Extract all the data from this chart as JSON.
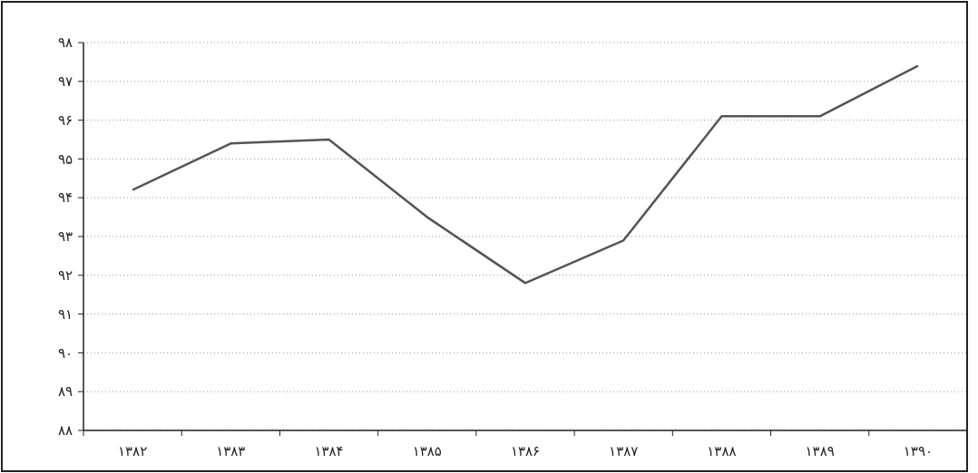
{
  "chart_data": {
    "type": "line",
    "categories": [
      "۱۳۸۲",
      "۱۳۸۳",
      "۱۳۸۴",
      "۱۳۸۵",
      "۱۳۸۶",
      "۱۳۸۷",
      "۱۳۸۸",
      "۱۳۸۹",
      "۱۳۹۰"
    ],
    "series": [
      {
        "color": "#555555",
        "values": [
          94.2,
          95.4,
          95.5,
          93.5,
          91.8,
          92.9,
          96.1,
          96.1,
          97.4
        ]
      }
    ],
    "ylim": [
      88,
      98
    ],
    "yticks": [
      {
        "value": 88,
        "label": "۸۸"
      },
      {
        "value": 89,
        "label": "۸۹"
      },
      {
        "value": 90,
        "label": "۹۰"
      },
      {
        "value": 91,
        "label": "۹۱"
      },
      {
        "value": 92,
        "label": "۹۲"
      },
      {
        "value": 93,
        "label": "۹۳"
      },
      {
        "value": 94,
        "label": "۹۴"
      },
      {
        "value": 95,
        "label": "۹۵"
      },
      {
        "value": 96,
        "label": "۹۶"
      },
      {
        "value": 97,
        "label": "۹۷"
      },
      {
        "value": 98,
        "label": "۹۸"
      }
    ],
    "grid": "y",
    "marker": "none",
    "line_style": "solid"
  }
}
